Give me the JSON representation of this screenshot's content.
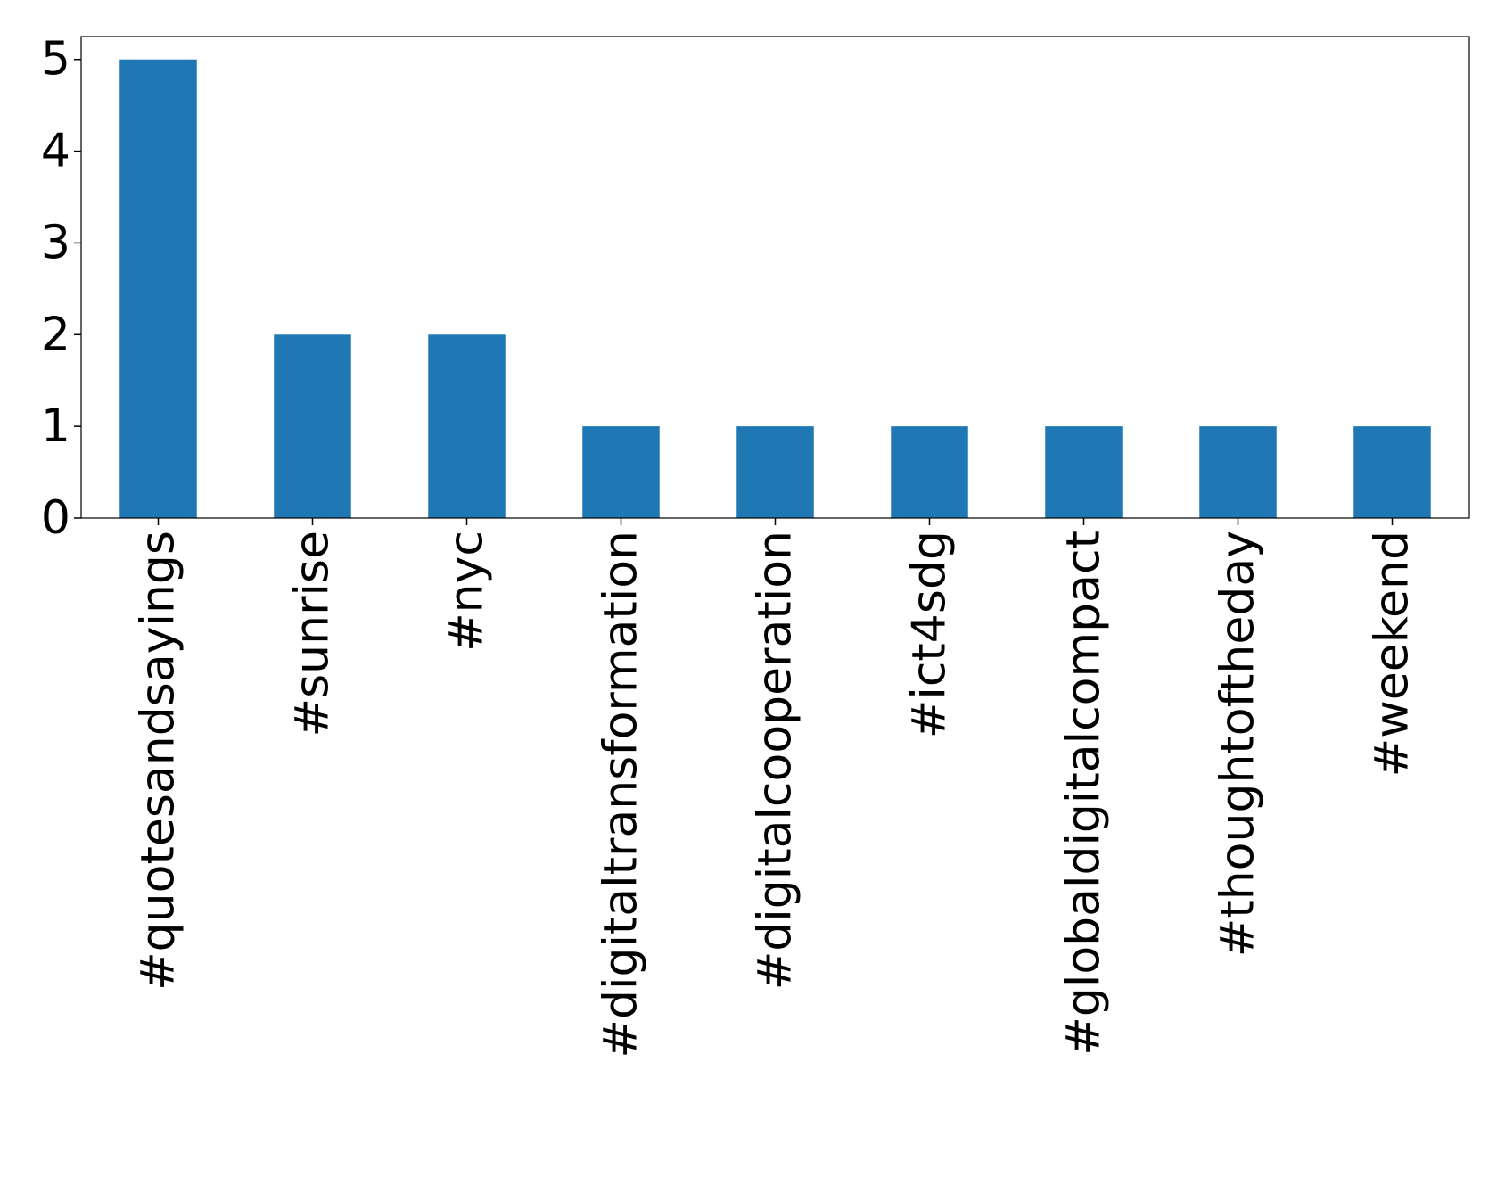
{
  "chart_data": {
    "type": "bar",
    "categories": [
      "#quotesandsayings",
      "#sunrise",
      "#nyc",
      "#digitaltransformation",
      "#digitalcooperation",
      "#ict4sdg",
      "#globaldigitalcompact",
      "#thoughtoftheday",
      "#weekend"
    ],
    "values": [
      5,
      2,
      2,
      1,
      1,
      1,
      1,
      1,
      1
    ],
    "color": "#1f77b4",
    "ylim": [
      0,
      5.25
    ],
    "yticks": [
      0,
      1,
      2,
      3,
      4,
      5
    ],
    "grid": false
  }
}
